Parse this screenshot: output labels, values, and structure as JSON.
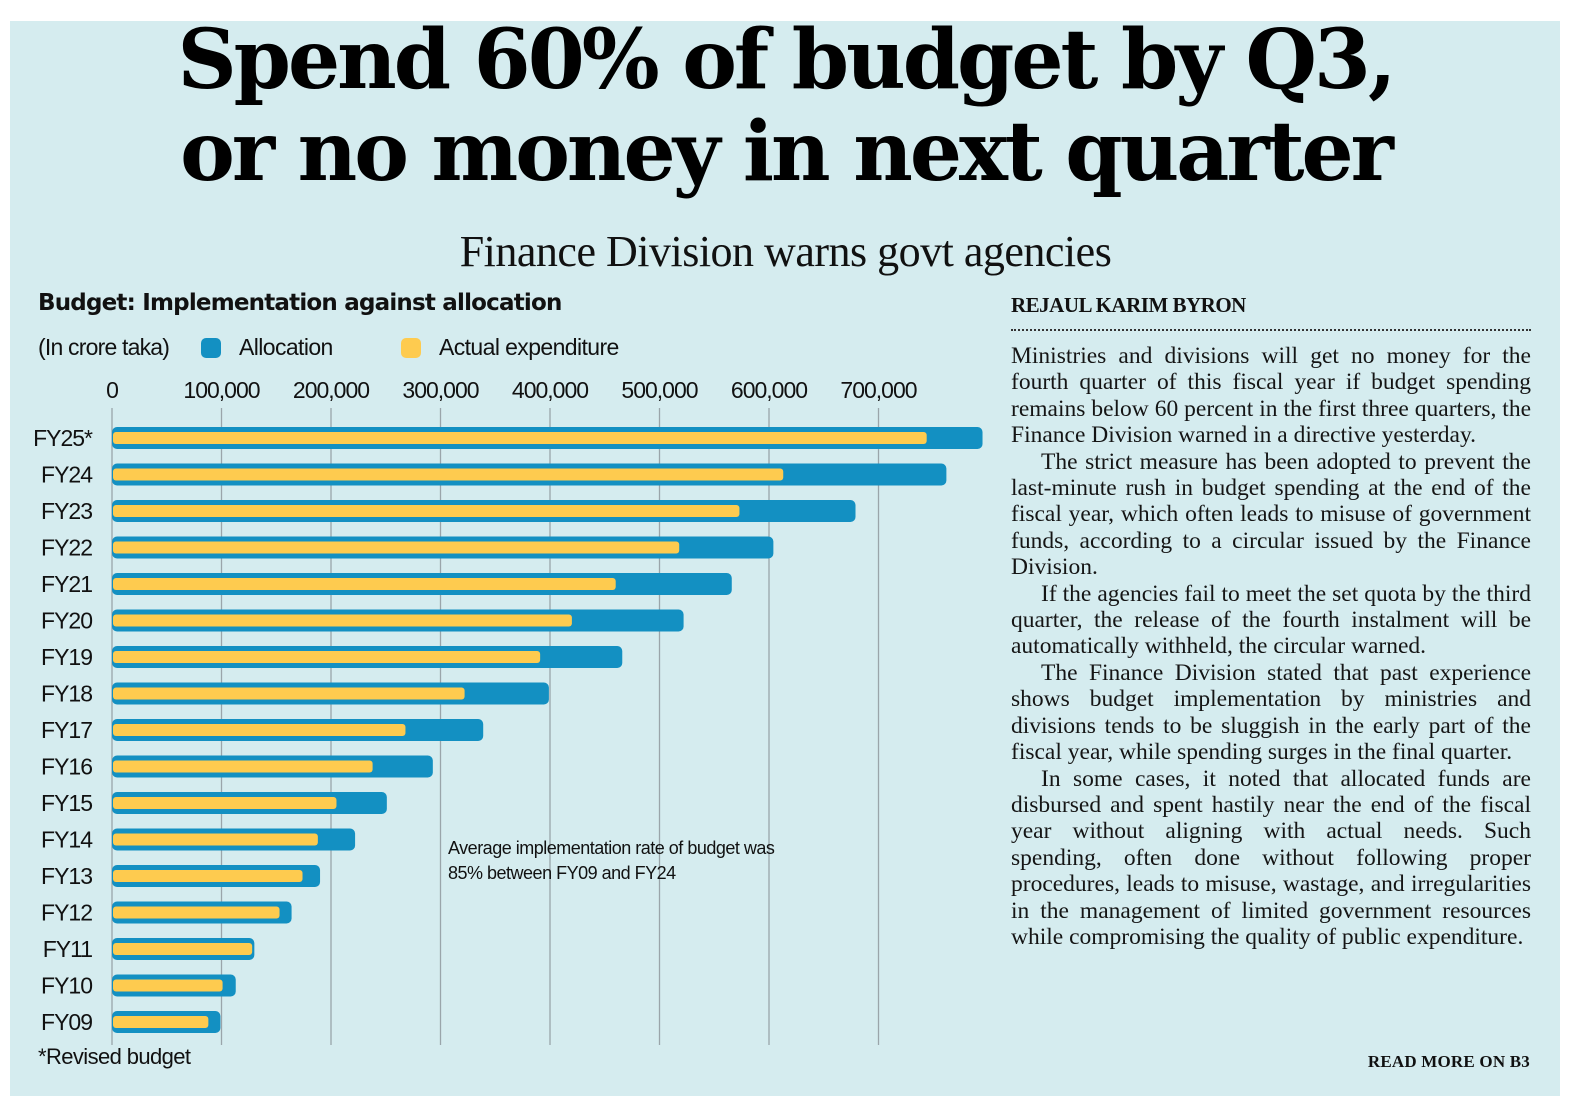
{
  "headline": {
    "line1": "Spend 60% of budget by Q3,",
    "line2": "or no money in next quarter"
  },
  "subhead": "Finance Division warns govt agencies",
  "chart_data": {
    "type": "bar",
    "orientation": "horizontal",
    "title": "Budget: Implementation against allocation",
    "unit_label": "(In crore taka)",
    "xlabel": "",
    "ylabel": "",
    "xlim": [
      0,
      800000
    ],
    "x_ticks": [
      0,
      100000,
      200000,
      300000,
      400000,
      500000,
      600000,
      700000
    ],
    "x_tick_labels": [
      "0",
      "100,000",
      "200,000",
      "300,000",
      "400,000",
      "500,000",
      "600,000",
      "700,000"
    ],
    "grid": true,
    "legend_position": "top-left",
    "categories": [
      "FY25*",
      "FY24",
      "FY23",
      "FY22",
      "FY21",
      "FY20",
      "FY19",
      "FY18",
      "FY17",
      "FY16",
      "FY15",
      "FY14",
      "FY13",
      "FY12",
      "FY11",
      "FY10",
      "FY09"
    ],
    "series": [
      {
        "name": "Allocation",
        "color": "#1390c2",
        "values": [
          795000,
          762000,
          679000,
          604000,
          566000,
          522000,
          466000,
          399000,
          339000,
          293000,
          251000,
          222000,
          190000,
          164000,
          130000,
          113000,
          99000
        ]
      },
      {
        "name": "Actual expenditure",
        "color": "#fecb4f",
        "values": [
          744000,
          613000,
          573000,
          518000,
          460000,
          420000,
          391000,
          322000,
          268000,
          238000,
          205000,
          188000,
          174000,
          153000,
          128000,
          101000,
          88000
        ]
      }
    ],
    "annotation": {
      "line1": "Average implementation rate of budget was",
      "line2": "85% between FY09 and FY24"
    },
    "footnote": "*Revised budget"
  },
  "article": {
    "byline": "REJAUL KARIM BYRON",
    "paragraphs": [
      "Ministries and divisions will get no money for the fourth quarter of this fiscal year if budget spending remains below 60 percent in the first three quarters, the Finance Division warned in a directive yesterday.",
      "The strict measure has been adopted to prevent the last-minute rush in budget spending at the end of the fiscal year, which often leads to misuse of government funds, according to a circular issued by the Finance Division.",
      "If the agencies fail to meet the set quota by the third quarter, the release of the fourth instalment will be automatically withheld, the circular warned.",
      "The Finance Division stated that past experience shows budget implementation by ministries and divisions tends to be sluggish in the early part of the fiscal year, while spending surges in the final quarter.",
      "In some cases, it noted that allocated funds are disbursed and spent hastily near the end of the fiscal year without aligning with actual needs. Such spending, often done without following proper procedures, leads to misuse, wastage, and irregularities in the management of limited government resources while compromising the quality of public expenditure."
    ],
    "read_more": "READ MORE ON B3"
  },
  "colors": {
    "background": "#d5ecef",
    "allocation": "#1390c2",
    "expenditure": "#fecb4f",
    "gridline": "#9aa5aa",
    "text": "#111111"
  }
}
